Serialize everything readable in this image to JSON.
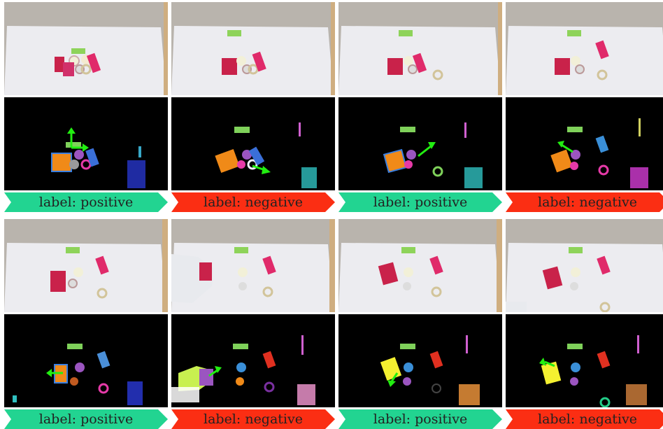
{
  "colors": {
    "positive": "#22d491",
    "negative": "#fb2e13",
    "table": "#ececf0",
    "floor": "#b8b4ad",
    "arrow": "#22ee11"
  },
  "panels": [
    {
      "label": "label: positive",
      "kind": "positive"
    },
    {
      "label": "label: negative",
      "kind": "negative"
    },
    {
      "label": "label: positive",
      "kind": "positive"
    },
    {
      "label": "label: negative",
      "kind": "negative"
    },
    {
      "label": "label: positive",
      "kind": "positive"
    },
    {
      "label": "label: negative",
      "kind": "negative"
    },
    {
      "label": "label: positive",
      "kind": "positive"
    },
    {
      "label": "label: negative",
      "kind": "negative"
    }
  ]
}
